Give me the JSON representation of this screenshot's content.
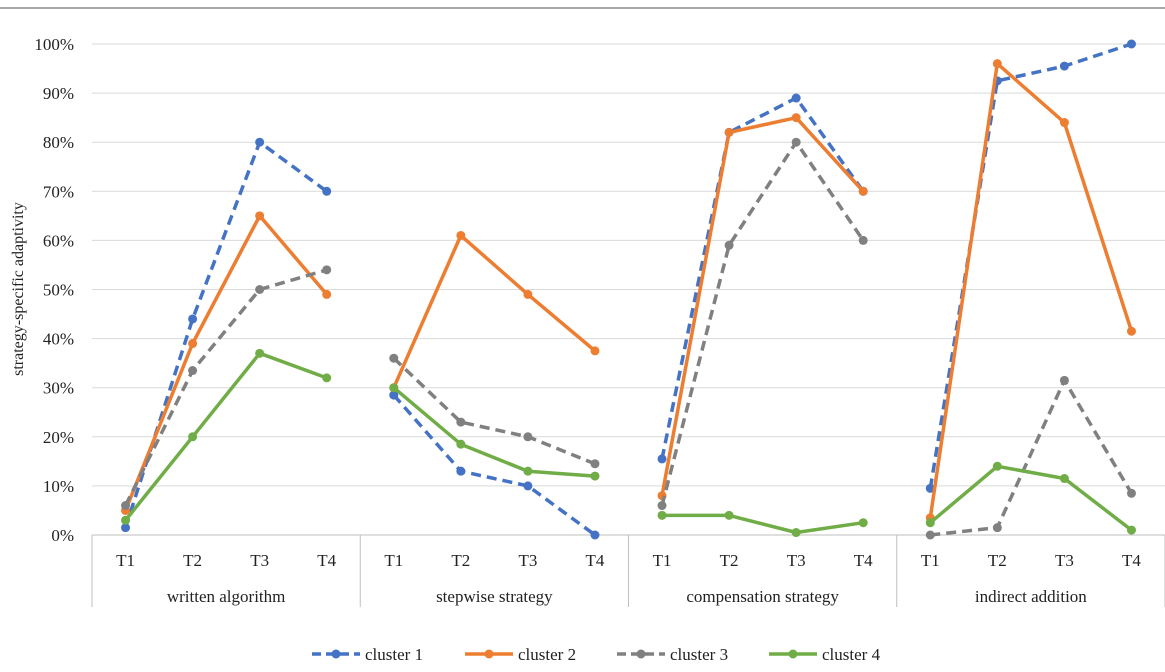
{
  "chart_data": {
    "type": "line",
    "ylabel": "strategy-specific adaptivity",
    "ylim": [
      0,
      100
    ],
    "y_ticks": [
      "0%",
      "10%",
      "20%",
      "30%",
      "40%",
      "50%",
      "60%",
      "70%",
      "80%",
      "90%",
      "100%"
    ],
    "grid": true,
    "legend_position": "bottom",
    "groups": [
      {
        "name": "written algorithm",
        "categories": [
          "T1",
          "T2",
          "T3",
          "T4"
        ]
      },
      {
        "name": "stepwise strategy",
        "categories": [
          "T1",
          "T2",
          "T3",
          "T4"
        ]
      },
      {
        "name": "compensation strategy",
        "categories": [
          "T1",
          "T2",
          "T3",
          "T4"
        ]
      },
      {
        "name": "indirect addition",
        "categories": [
          "T1",
          "T2",
          "T3",
          "T4"
        ]
      }
    ],
    "series": [
      {
        "name": "cluster 1",
        "color": "#4472C4",
        "dash": "dashed",
        "values": [
          [
            1.5,
            44,
            80,
            70
          ],
          [
            28.5,
            13,
            10,
            0
          ],
          [
            15.5,
            82,
            89,
            70
          ],
          [
            9.5,
            92.5,
            95.5,
            100
          ]
        ]
      },
      {
        "name": "cluster 2",
        "color": "#ED7D31",
        "dash": "solid",
        "values": [
          [
            5,
            39,
            65,
            49
          ],
          [
            30,
            61,
            49,
            37.5
          ],
          [
            8,
            82,
            85,
            70
          ],
          [
            3.5,
            96,
            84,
            41.5
          ]
        ]
      },
      {
        "name": "cluster 3",
        "color": "#808080",
        "dash": "dashed",
        "values": [
          [
            6,
            33.5,
            50,
            54
          ],
          [
            36,
            23,
            20,
            14.5
          ],
          [
            6,
            59,
            80,
            60
          ],
          [
            0,
            1.5,
            31.5,
            8.5
          ]
        ]
      },
      {
        "name": "cluster 4",
        "color": "#70AD47",
        "dash": "solid",
        "values": [
          [
            3,
            20,
            37,
            32
          ],
          [
            30,
            18.5,
            13,
            12
          ],
          [
            4,
            4,
            0.5,
            2.5
          ],
          [
            2.5,
            14,
            11.5,
            1
          ]
        ]
      }
    ]
  }
}
